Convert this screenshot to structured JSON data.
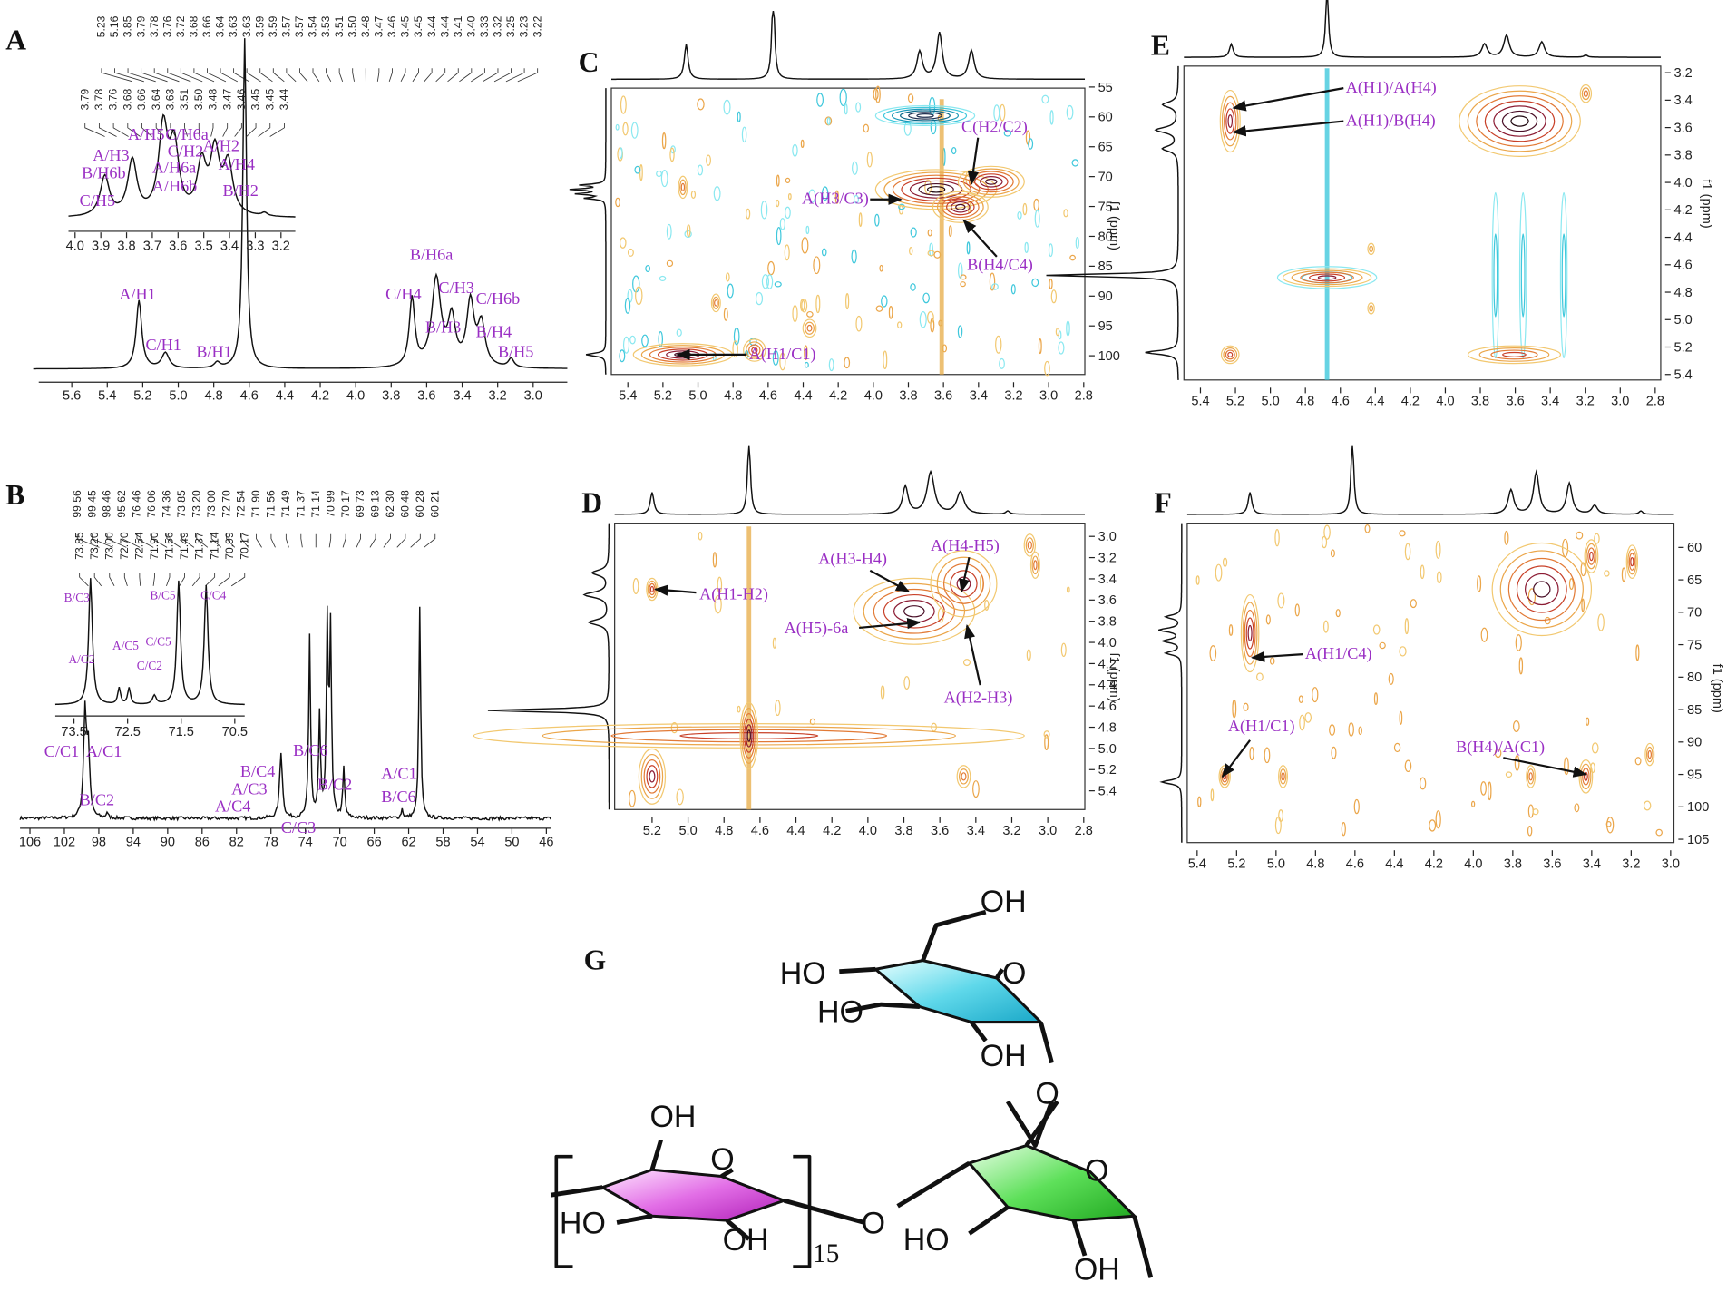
{
  "panels": [
    {
      "label": "A",
      "peak_list": [
        "5.23",
        "5.16",
        "3.85",
        "3.79",
        "3.78",
        "3.76",
        "3.72",
        "3.68",
        "3.66",
        "3.64",
        "3.63",
        "3.63",
        "3.59",
        "3.59",
        "3.57",
        "3.57",
        "3.54",
        "3.53",
        "3.51",
        "3.50",
        "3.48",
        "3.47",
        "3.46",
        "3.45",
        "3.45",
        "3.44",
        "3.44",
        "3.41",
        "3.40",
        "3.33",
        "3.32",
        "3.25",
        "3.23",
        "3.22"
      ],
      "x_ticks": [
        "5.6",
        "5.4",
        "5.2",
        "5.0",
        "4.8",
        "4.6",
        "4.4",
        "4.2",
        "4.0",
        "3.8",
        "3.6",
        "3.4",
        "3.2",
        "3.0"
      ],
      "annotations": [
        "A/H1",
        "C/H1",
        "B/H1",
        "B/H6a",
        "C/H4",
        "C/H3",
        "C/H6b",
        "B/H3",
        "B/H4",
        "B/H5"
      ],
      "inset": {
        "peak_list": [
          "3.79",
          "3.78",
          "3.76",
          "3.68",
          "3.66",
          "3.64",
          "3.63",
          "3.51",
          "3.50",
          "3.48",
          "3.47",
          "3.46",
          "3.45",
          "3.45",
          "3.44"
        ],
        "x_ticks": [
          "4.0",
          "3.9",
          "3.8",
          "3.7",
          "3.6",
          "3.5",
          "3.4",
          "3.3",
          "3.2"
        ],
        "annotations": [
          "A/H5",
          "C/H6a",
          "A/H3",
          "C/H2",
          "A/H2",
          "A/H6a",
          "A/H4",
          "B/H6b",
          "A/H6b",
          "B/H2",
          "C/H5"
        ]
      }
    },
    {
      "label": "B",
      "peak_list": [
        "99.56",
        "99.45",
        "98.46",
        "95.62",
        "76.46",
        "76.06",
        "74.36",
        "73.85",
        "73.20",
        "73.00",
        "72.70",
        "72.54",
        "71.90",
        "71.56",
        "71.49",
        "71.37",
        "71.14",
        "70.99",
        "70.17",
        "69.73",
        "69.13",
        "62.30",
        "60.48",
        "60.28",
        "60.21"
      ],
      "x_ticks": [
        "106",
        "102",
        "98",
        "94",
        "90",
        "86",
        "82",
        "78",
        "74",
        "70",
        "66",
        "62",
        "58",
        "54",
        "50",
        "46"
      ],
      "annotations": [
        "C/C1",
        "A/C1",
        "B/C2",
        "B/C4",
        "A/C3",
        "A/C4",
        "C/C3",
        "B/C6",
        "B/C2",
        "A/C1",
        "B/C6"
      ],
      "inset": {
        "peak_list": [
          "73.85",
          "73.20",
          "73.00",
          "72.70",
          "72.54",
          "71.90",
          "71.56",
          "71.49",
          "71.37",
          "71.14",
          "70.99",
          "70.17"
        ],
        "x_ticks": [
          "73.5",
          "72.5",
          "71.5",
          "70.5"
        ],
        "annotations": [
          "B/C3",
          "A/C2",
          "A/C5",
          "C/C5",
          "C/C2",
          "B/C5",
          "C/C4"
        ]
      }
    },
    {
      "label": "C",
      "x_ticks": [
        "5.4",
        "5.2",
        "5.0",
        "4.8",
        "4.6",
        "4.4",
        "4.2",
        "4.0",
        "3.8",
        "3.6",
        "3.4",
        "3.2",
        "3.0",
        "2.8"
      ],
      "y_ticks": [
        "55",
        "60",
        "65",
        "70",
        "75",
        "80",
        "85",
        "90",
        "95",
        "100"
      ],
      "y_axis_label": "f1 (ppm)",
      "annotations": [
        "C(H2/C2)",
        "A(H3/C3)",
        "B(H4/C4)",
        "A(H1/C1)"
      ]
    },
    {
      "label": "D",
      "x_ticks": [
        "5.2",
        "5.0",
        "4.8",
        "4.6",
        "4.4",
        "4.2",
        "4.0",
        "3.8",
        "3.6",
        "3.4",
        "3.2",
        "3.0",
        "2.8"
      ],
      "y_ticks": [
        "3.0",
        "3.2",
        "3.4",
        "3.6",
        "3.8",
        "4.0",
        "4.2",
        "4.4",
        "4.6",
        "4.8",
        "5.0",
        "5.2",
        "5.4"
      ],
      "y_axis_label": "f1 (ppm)",
      "annotations": [
        "A(H1-H2)",
        "A(H3-H4)",
        "A(H4-H5)",
        "A(H5)-6a",
        "A(H2-H3)"
      ]
    },
    {
      "label": "E",
      "x_ticks": [
        "5.4",
        "5.2",
        "5.0",
        "4.8",
        "4.6",
        "4.4",
        "4.2",
        "4.0",
        "3.8",
        "3.6",
        "3.4",
        "3.2",
        "3.0",
        "2.8"
      ],
      "y_ticks": [
        "3.2",
        "3.4",
        "3.6",
        "3.8",
        "4.0",
        "4.2",
        "4.4",
        "4.6",
        "4.8",
        "5.0",
        "5.2",
        "5.4"
      ],
      "y_axis_label": "f1 (ppm)",
      "annotations": [
        "A(H1)/A(H4)",
        "A(H1)/B(H4)"
      ]
    },
    {
      "label": "F",
      "x_ticks": [
        "5.4",
        "5.2",
        "5.0",
        "4.8",
        "4.6",
        "4.4",
        "4.2",
        "4.0",
        "3.8",
        "3.6",
        "3.4",
        "3.2",
        "3.0"
      ],
      "y_ticks": [
        "60",
        "65",
        "70",
        "75",
        "80",
        "85",
        "90",
        "95",
        "100",
        "105"
      ],
      "y_axis_label": "f1 (ppm)",
      "annotations": [
        "A(H1/C4)",
        "A(H1/C1)",
        "B(H4)/A(C1)"
      ]
    }
  ],
  "structure": {
    "label": "G",
    "atoms": [
      "OH",
      "HO",
      "O",
      "HO",
      "OH",
      "O",
      "O",
      "HO",
      "OH",
      "O",
      "OH",
      "O",
      "HO",
      "OH"
    ],
    "repeat": "15"
  }
}
